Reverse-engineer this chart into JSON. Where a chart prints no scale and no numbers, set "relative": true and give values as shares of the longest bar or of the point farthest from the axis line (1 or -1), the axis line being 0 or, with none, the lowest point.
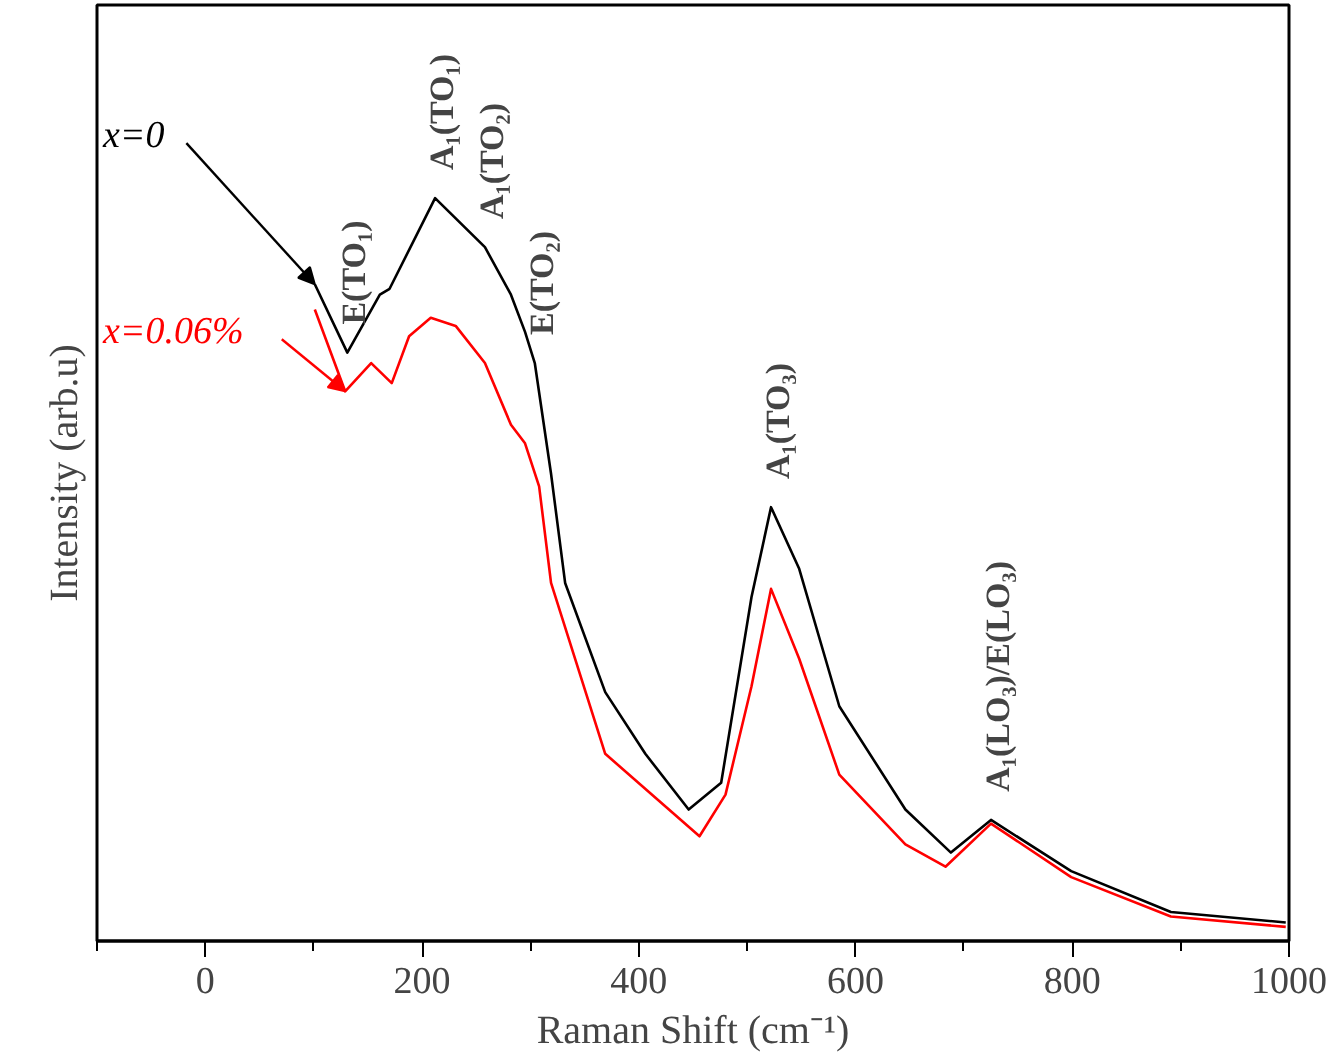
{
  "chart_data": {
    "type": "line",
    "relative": true,
    "xlabel": "Raman Shift (cm⁻¹)",
    "ylabel": "Intensity (arb.u)",
    "xlim": [
      -100,
      1000
    ],
    "xticks": [
      {
        "value": -100,
        "label": null
      },
      0,
      {
        "value": 100,
        "label": null
      },
      200,
      {
        "value": 300,
        "label": null
      },
      400,
      {
        "value": 500,
        "label": null
      },
      600,
      {
        "value": 700,
        "label": null
      },
      800,
      {
        "value": 900,
        "label": null
      },
      1000
    ],
    "tick_labels": "x",
    "grid": false,
    "legend": false,
    "line_style": "solid",
    "marker": "none",
    "series": [
      {
        "name": "x=0",
        "color": "#000000",
        "x": [
          101,
          131,
          161,
          170,
          212,
          258,
          282,
          295,
          304,
          319,
          332,
          369,
          406,
          446,
          476,
          504,
          522,
          548,
          585,
          646,
          688,
          725,
          799,
          891,
          997
        ],
        "values": [
          0.884,
          0.792,
          0.87,
          0.878,
          1.0,
          0.934,
          0.87,
          0.82,
          0.778,
          0.629,
          0.482,
          0.335,
          0.252,
          0.177,
          0.213,
          0.463,
          0.584,
          0.501,
          0.316,
          0.177,
          0.119,
          0.163,
          0.094,
          0.039,
          0.025
        ]
      },
      {
        "name": "x=0.06%",
        "color": "#ff0000",
        "x": [
          101,
          129,
          153,
          172,
          188,
          208,
          231,
          258,
          282,
          295,
          308,
          319,
          369,
          456,
          480,
          504,
          522,
          548,
          585,
          646,
          683,
          725,
          799,
          891,
          997
        ],
        "values": [
          0.85,
          0.74,
          0.778,
          0.751,
          0.814,
          0.839,
          0.828,
          0.778,
          0.695,
          0.67,
          0.612,
          0.482,
          0.252,
          0.141,
          0.197,
          0.343,
          0.474,
          0.38,
          0.224,
          0.13,
          0.1,
          0.158,
          0.086,
          0.033,
          0.019
        ]
      }
    ],
    "annotations": [
      {
        "text": "E(TO₁)",
        "x": 131,
        "y": 0.792
      },
      {
        "text": "A₁(TO₁)",
        "x": 212,
        "y": 1.0
      },
      {
        "text": "A₁(TO₂)",
        "x": 258,
        "y": 0.934
      },
      {
        "text": "E(TO₂)",
        "x": 304,
        "y": 0.778
      },
      {
        "text": "A₁(TO₃)",
        "x": 522,
        "y": 0.584
      },
      {
        "text": "A₁(LO₃)/E(LO₃)",
        "x": 725,
        "y": 0.163
      }
    ]
  }
}
